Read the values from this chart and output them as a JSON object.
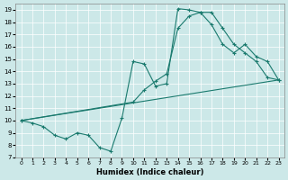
{
  "xlabel": "Humidex (Indice chaleur)",
  "bg_color": "#cce8e8",
  "line_color": "#1a7a6e",
  "grid_color": "#ffffff",
  "xlim": [
    -0.5,
    23.5
  ],
  "ylim": [
    7,
    19.5
  ],
  "yticks": [
    7,
    8,
    9,
    10,
    11,
    12,
    13,
    14,
    15,
    16,
    17,
    18,
    19
  ],
  "xticks": [
    0,
    1,
    2,
    3,
    4,
    5,
    6,
    7,
    8,
    9,
    10,
    11,
    12,
    13,
    14,
    15,
    16,
    17,
    18,
    19,
    20,
    21,
    22,
    23
  ],
  "line1_x": [
    0,
    1,
    2,
    3,
    4,
    5,
    6,
    7,
    8,
    9,
    10,
    11,
    12,
    13,
    14,
    15,
    16,
    17,
    18,
    19,
    20,
    21,
    22,
    23
  ],
  "line1_y": [
    10.0,
    9.8,
    9.5,
    8.8,
    8.5,
    9.0,
    8.8,
    7.8,
    7.5,
    10.2,
    14.8,
    14.6,
    12.8,
    13.0,
    19.1,
    19.0,
    18.8,
    18.8,
    17.5,
    16.2,
    15.5,
    14.8,
    13.5,
    13.3
  ],
  "line2_x": [
    0,
    23
  ],
  "line2_y": [
    10.0,
    13.3
  ],
  "line3_x": [
    0,
    10,
    11,
    12,
    13,
    14,
    15,
    16,
    17,
    18,
    19,
    20,
    21,
    22,
    23
  ],
  "line3_y": [
    10.0,
    11.5,
    12.5,
    13.2,
    13.8,
    17.5,
    18.5,
    18.8,
    17.8,
    16.2,
    15.5,
    16.2,
    15.2,
    14.8,
    13.3
  ]
}
